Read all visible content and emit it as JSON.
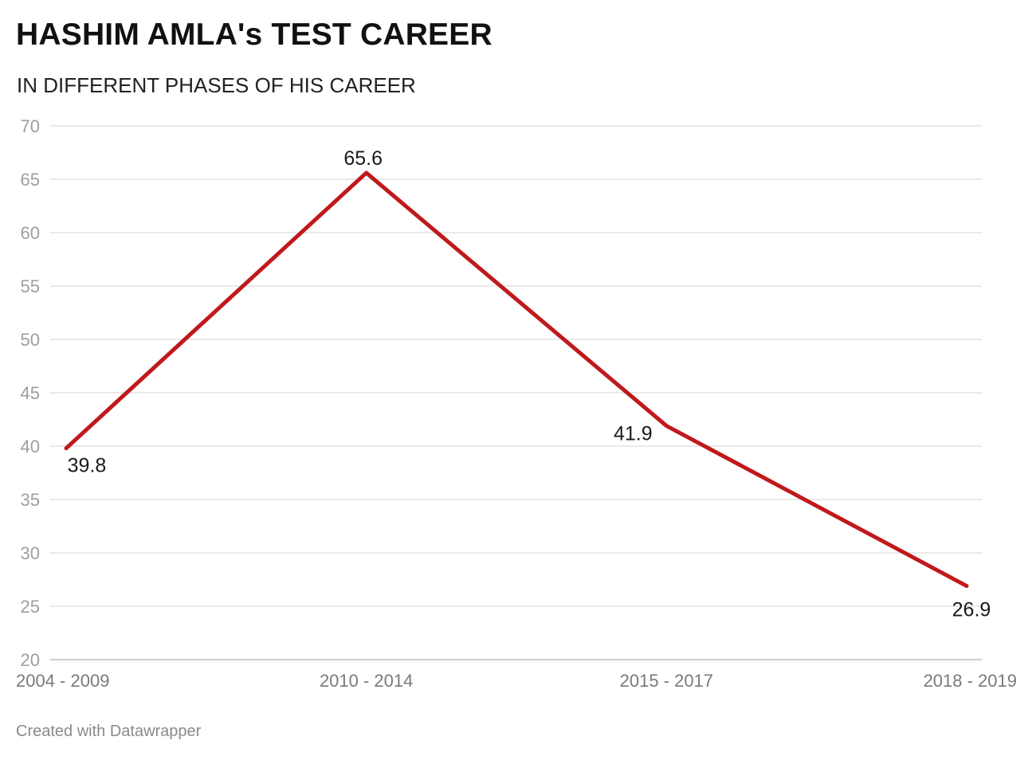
{
  "chart_title": "HASHIM AMLA's TEST CAREER",
  "chart_subtitle": "IN DIFFERENT PHASES OF HIS CAREER",
  "footer": "Created with Datawrapper",
  "line_color": "#c0191c",
  "chart_data": {
    "type": "line",
    "title": "HASHIM AMLA's TEST CAREER",
    "subtitle": "IN DIFFERENT PHASES OF HIS CAREER",
    "xlabel": "",
    "ylabel": "",
    "categories": [
      "2004 - 2009",
      "2010 - 2014",
      "2015 - 2017",
      "2018 - 2019"
    ],
    "series": [
      {
        "values": [
          39.8,
          65.6,
          41.9,
          26.9
        ]
      }
    ],
    "data_labels": [
      "39.8",
      "65.6",
      "41.9",
      "26.9"
    ],
    "ylim": [
      20,
      70
    ],
    "yticks": [
      20,
      25,
      30,
      35,
      40,
      45,
      50,
      55,
      60,
      65,
      70
    ],
    "grid": true,
    "legend": "none"
  }
}
